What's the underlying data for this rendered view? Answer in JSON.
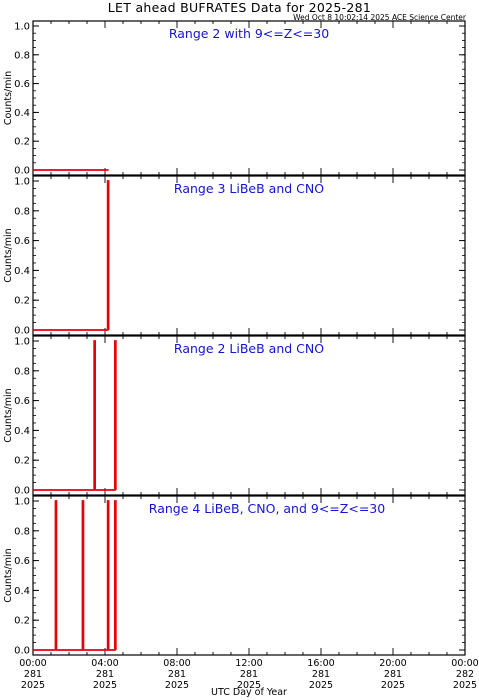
{
  "header": {
    "title": "LET ahead BUFRATES Data for 2025-281",
    "timestamp": "Wed Oct  8 10:02:14 2025 ACE Science Center"
  },
  "colors": {
    "axis": "#000000",
    "series": "#e8000b",
    "label": "#1515d0"
  },
  "chart_data": [
    {
      "type": "line",
      "title": "Range 2 with 9<=Z<=30",
      "ylabel": "Counts/min",
      "ylim": [
        0,
        1.0
      ],
      "xlim": [
        0,
        24
      ],
      "y_ticks": [
        "0.0",
        "0.2",
        "0.4",
        "0.6",
        "0.8",
        "1.0"
      ],
      "series": [
        {
          "x": [
            0,
            4.2
          ],
          "y": [
            0,
            0
          ]
        }
      ]
    },
    {
      "type": "line",
      "title": "Range 3 LiBeB and CNO",
      "ylabel": "Counts/min",
      "ylim": [
        0,
        1.0
      ],
      "xlim": [
        0,
        24
      ],
      "y_ticks": [
        "0.0",
        "0.2",
        "0.4",
        "0.6",
        "0.8",
        "1.0"
      ],
      "series": [
        {
          "x": [
            0,
            4.15,
            4.15,
            4.2,
            4.2
          ],
          "y": [
            0,
            0,
            1,
            1,
            0
          ]
        }
      ]
    },
    {
      "type": "line",
      "title": "Range 2 LiBeB and CNO",
      "ylabel": "Counts/min",
      "ylim": [
        0,
        1.0
      ],
      "xlim": [
        0,
        24
      ],
      "y_ticks": [
        "0.0",
        "0.2",
        "0.4",
        "0.6",
        "0.8",
        "1.0"
      ],
      "series": [
        {
          "x": [
            0,
            3.4,
            3.4,
            3.45,
            3.45,
            4.55,
            4.55,
            4.6,
            4.6
          ],
          "y": [
            0,
            0,
            1,
            1,
            0,
            0,
            1,
            1,
            0
          ]
        }
      ]
    },
    {
      "type": "line",
      "title": "Range 4 LiBeB, CNO, and 9<=Z<=30",
      "ylabel": "Counts/min",
      "ylim": [
        0,
        1.0
      ],
      "xlim": [
        0,
        24
      ],
      "y_ticks": [
        "0.0",
        "0.2",
        "0.4",
        "0.6",
        "0.8",
        "1.0"
      ],
      "xlabel": "UTC Day of Year",
      "x_ticks": [
        {
          "time": "00:00",
          "doy": "281",
          "year": "2025"
        },
        {
          "time": "04:00",
          "doy": "281",
          "year": "2025"
        },
        {
          "time": "08:00",
          "doy": "281",
          "year": "2025"
        },
        {
          "time": "12:00",
          "doy": "281",
          "year": "2025"
        },
        {
          "time": "16:00",
          "doy": "281",
          "year": "2025"
        },
        {
          "time": "20:00",
          "doy": "281",
          "year": "2025"
        },
        {
          "time": "00:00",
          "doy": "282",
          "year": "2025"
        }
      ],
      "series": [
        {
          "x": [
            0,
            1.25,
            1.25,
            1.3,
            1.3,
            2.75,
            2.75,
            2.8,
            2.8,
            4.15,
            4.15,
            4.2,
            4.2,
            4.55,
            4.55,
            4.6,
            4.6
          ],
          "y": [
            0,
            0,
            1,
            1,
            0,
            0,
            1,
            1,
            0,
            0,
            1,
            1,
            0,
            0,
            1,
            1,
            0
          ]
        }
      ]
    }
  ]
}
